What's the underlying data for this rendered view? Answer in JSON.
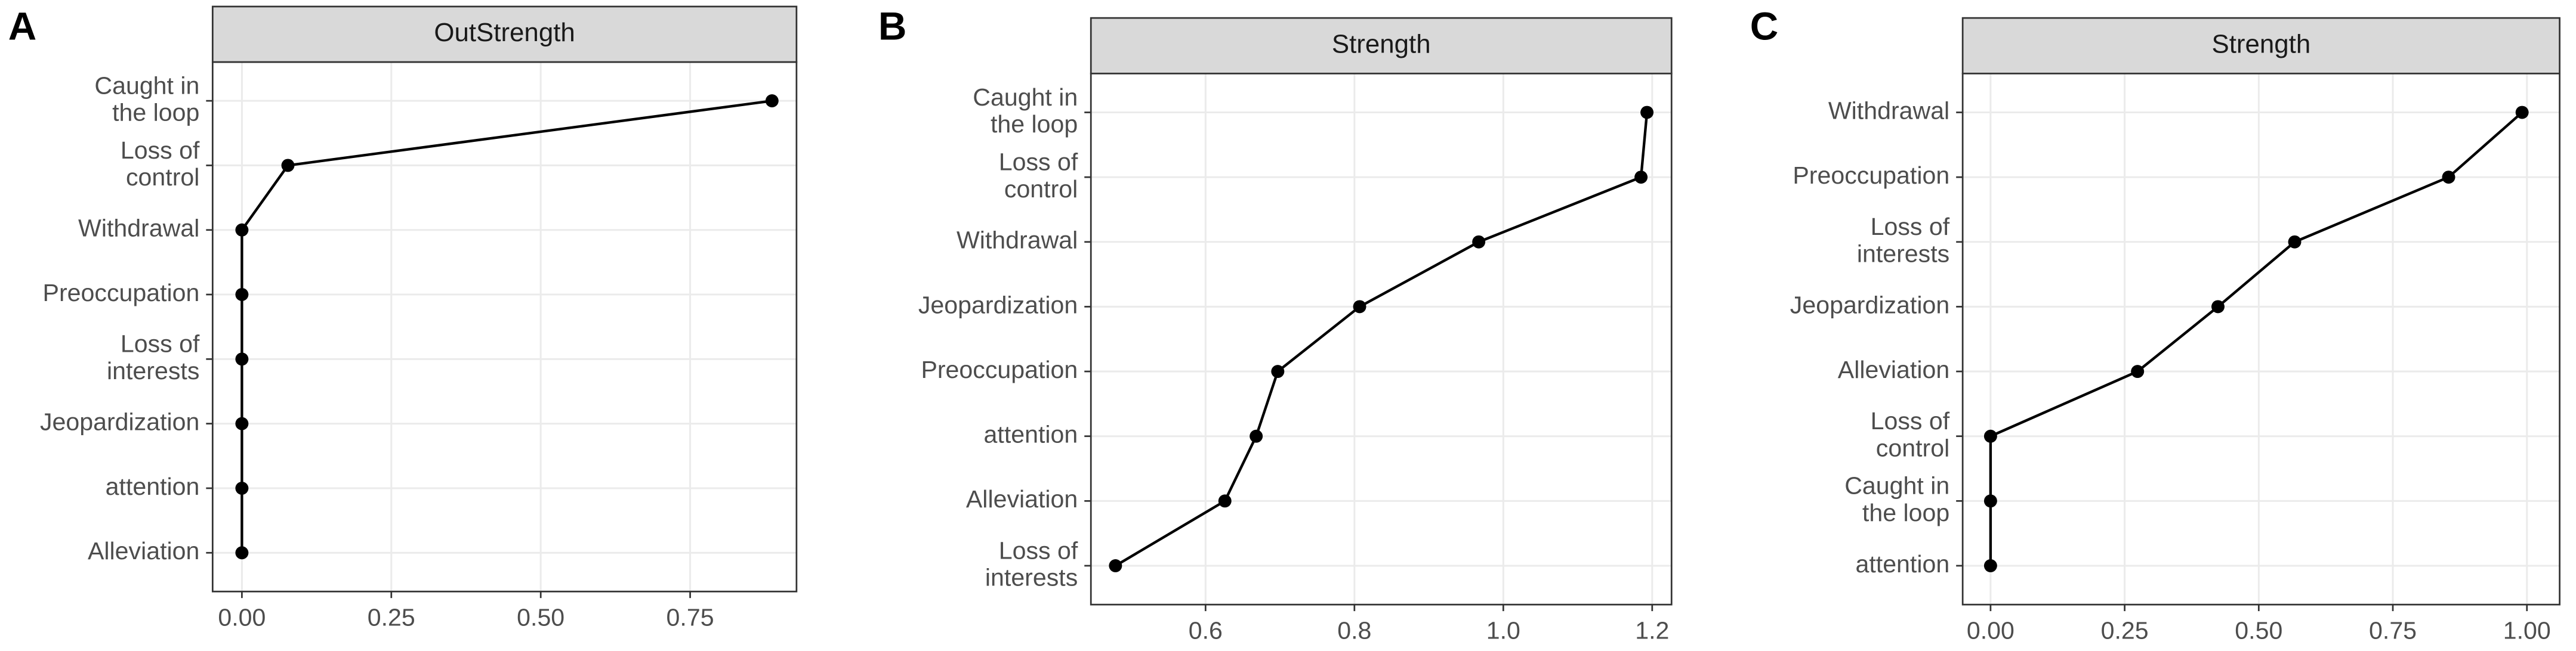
{
  "chart_data": [
    {
      "type": "line",
      "label": "A",
      "title": "OutStrength",
      "categories": [
        "Caught in\nthe loop",
        "Loss of\ncontrol",
        "Withdrawal",
        "Preoccupation",
        "Loss of\ninterests",
        "Jeopardization",
        "attention",
        "Alleviation"
      ],
      "values": [
        0.887,
        0.077,
        0,
        0,
        0,
        0,
        0,
        0
      ],
      "xlim": [
        -0.049,
        0.928
      ],
      "xticks": [
        {
          "value": 0,
          "label": "0.00"
        },
        {
          "value": 0.25,
          "label": "0.25"
        },
        {
          "value": 0.5,
          "label": "0.50"
        },
        {
          "value": 0.75,
          "label": "0.75"
        }
      ],
      "color": "#000000",
      "grid": true
    },
    {
      "type": "line",
      "label": "B",
      "title": "Strength",
      "categories": [
        "Caught in\nthe loop",
        "Loss of\ncontrol",
        "Withdrawal",
        "Jeopardization",
        "Preoccupation",
        "attention",
        "Alleviation",
        "Loss of\ninterests"
      ],
      "values": [
        1.193,
        1.185,
        0.967,
        0.807,
        0.697,
        0.668,
        0.626,
        0.479
      ],
      "xlim": [
        0.446,
        1.226
      ],
      "xticks": [
        0.6,
        0.8,
        {
          "value": 1,
          "label": "1.0"
        },
        1.2
      ],
      "color": "#000000",
      "grid": true
    },
    {
      "type": "line",
      "label": "C",
      "title": "Strength",
      "categories": [
        "Withdrawal",
        "Preoccupation",
        "Loss of\ninterests",
        "Jeopardization",
        "Alleviation",
        "Loss of\ncontrol",
        "Caught in\nthe loop",
        "attention"
      ],
      "values": [
        0.991,
        0.854,
        0.567,
        0.424,
        0.274,
        0,
        0,
        0
      ],
      "xlim": [
        -0.052,
        1.061
      ],
      "xticks": [
        {
          "value": 0,
          "label": "0.00"
        },
        {
          "value": 0.25,
          "label": "0.25"
        },
        {
          "value": 0.5,
          "label": "0.50"
        },
        {
          "value": 0.75,
          "label": "0.75"
        },
        {
          "value": 1,
          "label": "1.00"
        }
      ],
      "color": "#000000",
      "grid": true
    }
  ]
}
